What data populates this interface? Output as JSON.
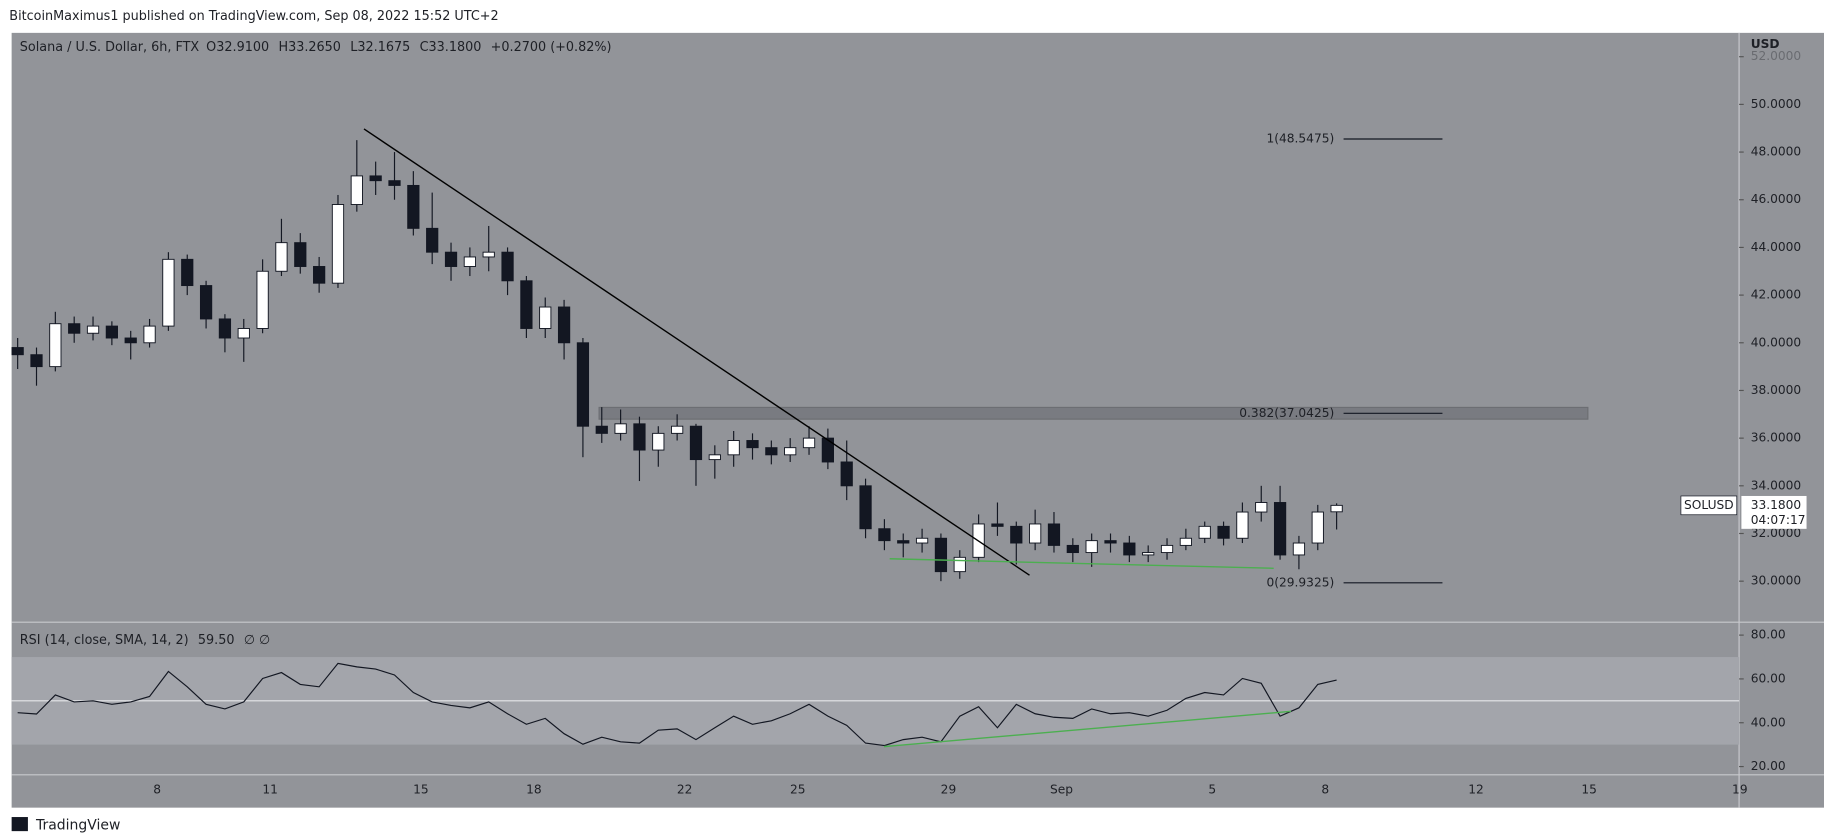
{
  "header": "BitcoinMaximus1 published on TradingView.com, Sep 08, 2022 15:52 UTC+2",
  "footer": "TradingView",
  "chart_data": [
    {
      "type": "candlestick",
      "title": "Solana / U.S. Dollar, 6h, FTX",
      "ohlc": [
        {
          "label": "O",
          "value": "32.9100"
        },
        {
          "label": "H",
          "value": "33.2650"
        },
        {
          "label": "L",
          "value": "32.1675"
        },
        {
          "label": "C",
          "value": "33.1800"
        }
      ],
      "change": "+0.2700 (+0.82%)",
      "axis_label": "USD",
      "x": [
        -3.7,
        -3.2,
        -2.7,
        -2.2,
        -1.7,
        -1.2,
        -0.7,
        -0.2,
        0.3,
        0.8,
        1.3,
        1.8,
        2.3,
        2.8,
        3.3,
        3.8,
        4.3,
        4.8,
        5.3,
        5.8,
        6.3,
        6.8,
        7.3,
        7.8,
        8.3,
        8.8,
        9.3,
        9.8,
        10.3,
        10.8,
        11.3,
        11.8,
        12.3,
        12.8,
        13.3,
        13.8,
        14.3,
        14.8,
        15.3,
        15.8,
        16.3,
        16.8,
        17.3,
        17.8,
        18.3,
        18.8,
        19.3,
        19.8,
        20.3,
        20.8,
        21.3,
        21.8,
        22.3,
        22.8,
        23.3,
        23.8,
        24.3,
        24.8,
        25.3,
        25.8,
        26.3,
        26.8,
        27.3,
        27.8,
        28.3,
        28.8,
        29.3,
        29.8,
        30.3,
        30.8,
        31.3
      ],
      "open": [
        39.8,
        39.5,
        39.0,
        40.8,
        40.4,
        40.7,
        40.2,
        40.0,
        40.7,
        43.5,
        42.4,
        41.0,
        40.2,
        40.6,
        43.0,
        44.2,
        43.2,
        42.5,
        45.8,
        47.0,
        46.8,
        46.6,
        44.8,
        43.8,
        43.2,
        43.6,
        43.8,
        42.6,
        40.6,
        41.5,
        40.0,
        36.5,
        36.2,
        36.6,
        35.5,
        36.2,
        36.5,
        35.1,
        35.3,
        35.9,
        35.6,
        35.3,
        35.6,
        36.0,
        35.0,
        34.0,
        32.2,
        31.7,
        31.6,
        31.8,
        30.4,
        31.0,
        32.4,
        32.3,
        31.6,
        32.4,
        31.5,
        31.2,
        31.7,
        31.6,
        31.1,
        31.2,
        31.5,
        31.8,
        32.3,
        31.8,
        32.9,
        33.3,
        31.1,
        31.6,
        32.91
      ],
      "high": [
        40.2,
        39.8,
        41.3,
        41.1,
        41.1,
        40.9,
        40.5,
        41.0,
        43.8,
        43.7,
        42.6,
        41.2,
        41.0,
        43.5,
        45.2,
        44.6,
        43.6,
        46.2,
        48.5,
        47.6,
        48.0,
        47.2,
        46.3,
        44.2,
        44.0,
        44.9,
        44.0,
        42.8,
        41.9,
        41.8,
        40.2,
        37.3,
        37.2,
        36.9,
        36.5,
        37.0,
        36.6,
        35.7,
        36.3,
        36.2,
        35.9,
        36.0,
        36.5,
        36.4,
        35.9,
        34.3,
        32.6,
        32.0,
        32.2,
        32.0,
        31.3,
        32.8,
        33.3,
        32.5,
        33.0,
        32.9,
        31.8,
        32.0,
        32.0,
        31.9,
        31.5,
        31.8,
        32.2,
        32.5,
        32.5,
        33.3,
        34.0,
        34.0,
        31.9,
        33.2,
        33.265
      ],
      "low": [
        38.9,
        38.2,
        38.8,
        40.0,
        40.1,
        39.9,
        39.3,
        39.8,
        40.5,
        42.0,
        40.6,
        39.6,
        39.2,
        40.4,
        42.8,
        42.9,
        42.1,
        42.3,
        45.5,
        46.2,
        46.0,
        44.5,
        43.3,
        42.6,
        42.8,
        43.0,
        42.0,
        40.2,
        40.2,
        39.3,
        35.2,
        35.8,
        35.9,
        34.2,
        34.8,
        35.9,
        34.0,
        34.3,
        34.8,
        35.1,
        34.9,
        35.0,
        35.3,
        34.7,
        33.4,
        31.8,
        31.3,
        31.0,
        31.2,
        30.0,
        30.1,
        30.8,
        31.9,
        30.7,
        31.3,
        31.2,
        30.8,
        30.6,
        31.2,
        30.8,
        30.8,
        30.9,
        31.3,
        31.6,
        31.5,
        31.6,
        32.5,
        30.9,
        30.5,
        31.3,
        32.1675
      ],
      "close": [
        39.5,
        39.0,
        40.8,
        40.4,
        40.7,
        40.2,
        40.0,
        40.7,
        43.5,
        42.4,
        41.0,
        40.2,
        40.6,
        43.0,
        44.2,
        43.2,
        42.5,
        45.8,
        47.0,
        46.8,
        46.6,
        44.8,
        43.8,
        43.2,
        43.6,
        43.8,
        42.6,
        40.6,
        41.5,
        40.0,
        36.5,
        36.2,
        36.6,
        35.5,
        36.2,
        36.5,
        35.1,
        35.3,
        35.9,
        35.6,
        35.3,
        35.6,
        36.0,
        35.0,
        34.0,
        32.2,
        31.7,
        31.6,
        31.8,
        30.4,
        31.0,
        32.4,
        32.3,
        31.6,
        32.4,
        31.5,
        31.2,
        31.7,
        31.6,
        31.1,
        31.2,
        31.5,
        31.8,
        32.3,
        31.8,
        32.9,
        33.3,
        31.1,
        31.6,
        32.9,
        33.18
      ],
      "up_color": "#ffffff",
      "down_color": "#131722",
      "xlim": [
        -3.86,
        41.98
      ],
      "xticks": [
        {
          "value": 0,
          "label": "8"
        },
        {
          "value": 3,
          "label": "11"
        },
        {
          "value": 7,
          "label": "15"
        },
        {
          "value": 10,
          "label": "18"
        },
        {
          "value": 14,
          "label": "22"
        },
        {
          "value": 17,
          "label": "25"
        },
        {
          "value": 21,
          "label": "29"
        },
        {
          "value": 24,
          "label": "Sep"
        },
        {
          "value": 28,
          "label": "5"
        },
        {
          "value": 31,
          "label": "8"
        },
        {
          "value": 35,
          "label": "12"
        },
        {
          "value": 38,
          "label": "15"
        },
        {
          "value": 42,
          "label": "19"
        }
      ],
      "ylim": [
        28.28,
        53.0
      ],
      "yticks": [
        {
          "value": 30,
          "label": "30.0000"
        },
        {
          "value": 32,
          "label": "32.0000"
        },
        {
          "value": 34,
          "label": "34.0000"
        },
        {
          "value": 36,
          "label": "36.0000"
        },
        {
          "value": 38,
          "label": "38.0000"
        },
        {
          "value": 40,
          "label": "40.0000"
        },
        {
          "value": 42,
          "label": "42.0000"
        },
        {
          "value": 44,
          "label": "44.0000"
        },
        {
          "value": 46,
          "label": "46.0000"
        },
        {
          "value": 48,
          "label": "48.0000"
        },
        {
          "value": 50,
          "label": "50.0000"
        },
        {
          "value": 52,
          "label": "52.0000"
        }
      ],
      "fib": [
        {
          "value": 48.5475,
          "label": "1(48.5475)"
        },
        {
          "value": 37.0425,
          "label": "0.382(37.0425)"
        },
        {
          "value": 29.9325,
          "label": "0(29.9325)"
        }
      ],
      "lines": [
        {
          "color": "#000000",
          "x": [
            5.49,
            23.15
          ],
          "y": [
            48.97,
            30.25
          ]
        },
        {
          "color": "#4caf50",
          "x": [
            19.44,
            29.63
          ],
          "y": [
            30.94,
            30.54
          ]
        }
      ],
      "price_tag": {
        "symbol": "SOLUSD",
        "label": "33.1800",
        "countdown": "04:07:17"
      }
    },
    {
      "type": "line",
      "title": "RSI (14, close, SMA, 14, 2)",
      "value_label": "59.50",
      "extra": "∅ ∅",
      "color": "#131722",
      "values": [
        44.6,
        44,
        52.7,
        49.5,
        50,
        48.4,
        49.5,
        52,
        63.4,
        56.4,
        48.4,
        46.3,
        49.5,
        60.2,
        62.9,
        57.5,
        56.4,
        67.1,
        65.5,
        64.5,
        61.8,
        53.8,
        49.5,
        47.9,
        46.8,
        49.5,
        44.1,
        39.3,
        42,
        35,
        30.2,
        33.4,
        31.3,
        30.7,
        36.6,
        37.2,
        32.3,
        37.7,
        43,
        39.3,
        40.9,
        44.1,
        48.4,
        43,
        38.8,
        30.7,
        29.6,
        32.3,
        33.4,
        31.3,
        43,
        47.3,
        37.7,
        48.4,
        44.1,
        42.5,
        42,
        46.3,
        44.1,
        44.6,
        43,
        45.7,
        51.1,
        53.8,
        52.7,
        60.2,
        58,
        43,
        46.8,
        57.5,
        59.5
      ],
      "ylim": [
        16.25,
        85.9
      ],
      "yticks": [
        {
          "value": 20,
          "label": "20.00"
        },
        {
          "value": 40,
          "label": "40.00"
        },
        {
          "value": 60,
          "label": "60.00"
        },
        {
          "value": 80,
          "label": "80.00"
        }
      ],
      "band": [
        30,
        70
      ],
      "midline": 50,
      "lines": [
        {
          "color": "#4caf50",
          "x": [
            19.29,
            30.09
          ],
          "y": [
            29.1,
            45.2
          ]
        }
      ]
    }
  ]
}
